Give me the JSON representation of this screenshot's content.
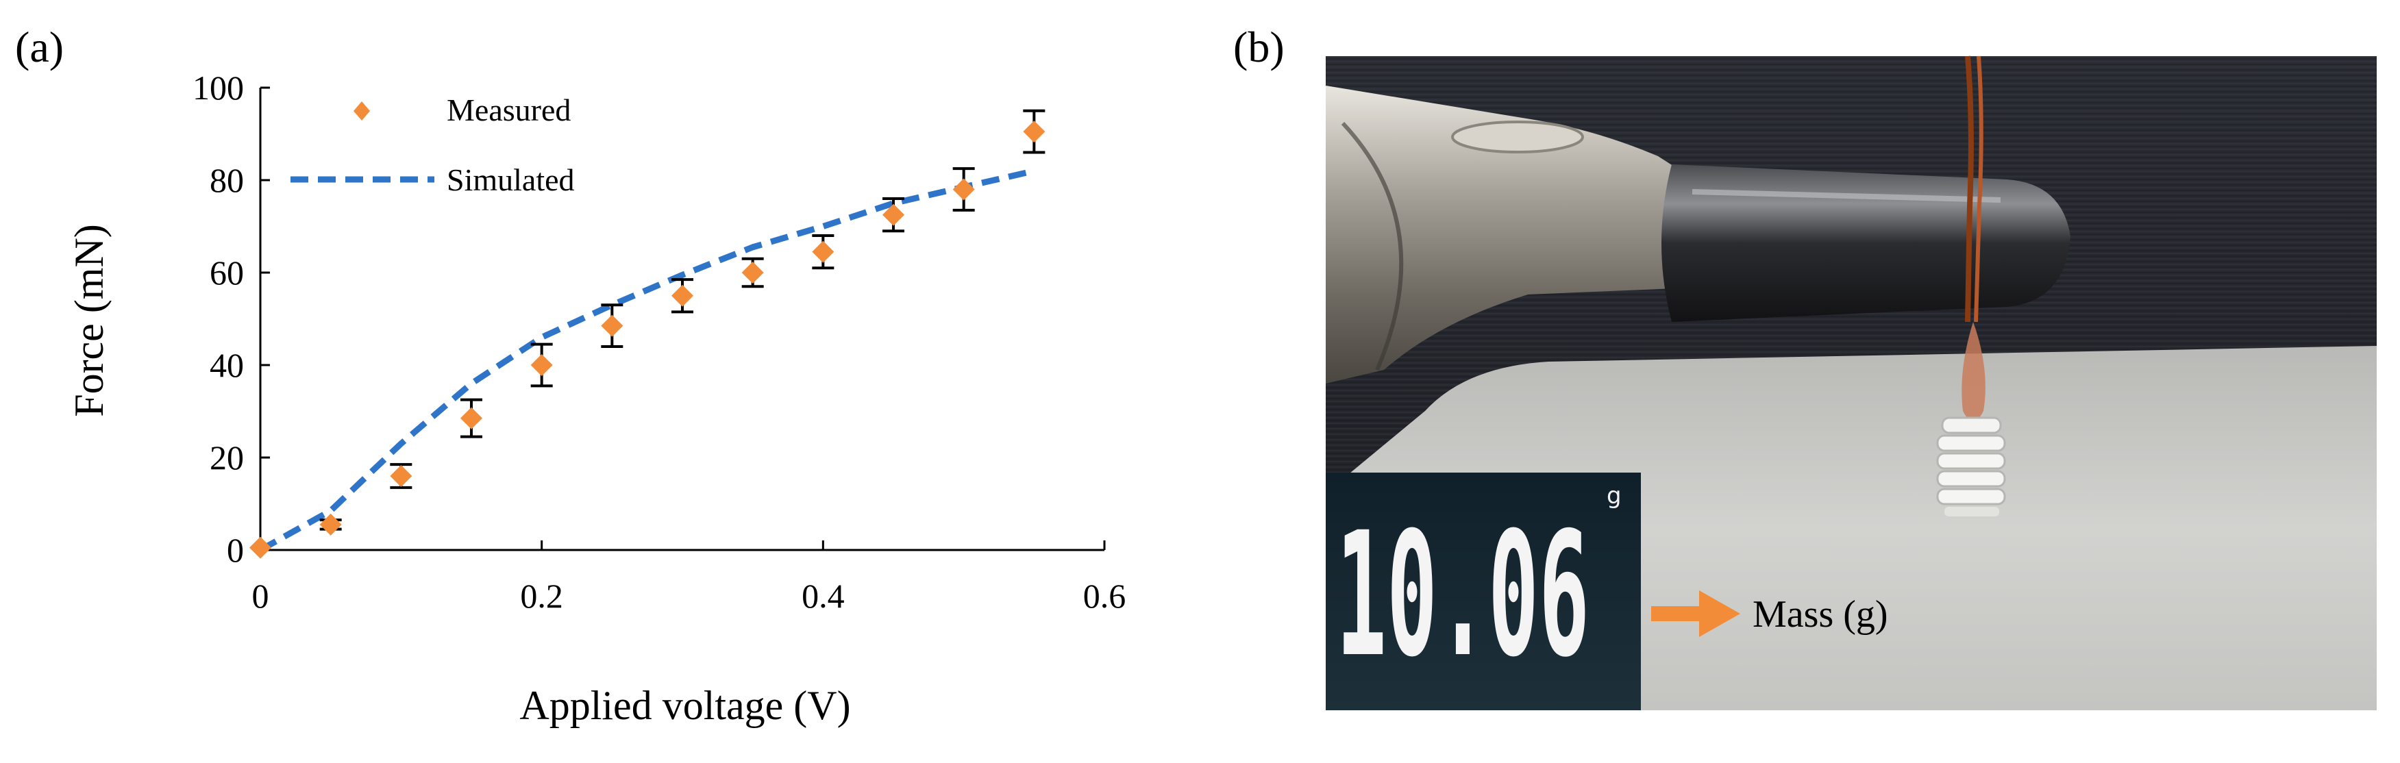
{
  "panels": {
    "a": {
      "label": "(a)"
    },
    "b": {
      "label": "(b)"
    }
  },
  "chart_data": {
    "type": "scatter",
    "xlabel": "Applied voltage (V)",
    "ylabel": "Force (mN)",
    "xlim": [
      0,
      0.6
    ],
    "ylim": [
      0,
      100
    ],
    "xticks": [
      0,
      0.2,
      0.4,
      0.6
    ],
    "xtick_labels": [
      "0",
      "0.2",
      "0.4",
      "0.6"
    ],
    "yticks": [
      0,
      20,
      40,
      60,
      80,
      100
    ],
    "ytick_labels": [
      "0",
      "20",
      "40",
      "60",
      "80",
      "100"
    ],
    "grid": false,
    "legend_position": "top-left",
    "series": [
      {
        "name": "Measured",
        "kind": "markers",
        "marker": "diamond",
        "color": "#F28C38",
        "x": [
          0,
          0.05,
          0.1,
          0.15,
          0.2,
          0.25,
          0.3,
          0.35,
          0.4,
          0.45,
          0.5,
          0.55
        ],
        "y": [
          0.5,
          5.5,
          16,
          28.5,
          40,
          48.5,
          55,
          60,
          64.5,
          72.5,
          78,
          90.5
        ],
        "error": [
          0,
          1,
          2.5,
          4,
          4.5,
          4.5,
          3.5,
          3,
          3.5,
          3.5,
          4.5,
          4.5
        ]
      },
      {
        "name": "Simulated",
        "kind": "dashed-line",
        "color": "#2E75C9",
        "x": [
          0,
          0.05,
          0.1,
          0.15,
          0.2,
          0.25,
          0.3,
          0.35,
          0.4,
          0.45,
          0.5,
          0.55
        ],
        "y": [
          0,
          8.5,
          23,
          36,
          46,
          53,
          59.5,
          65.5,
          70,
          75,
          78.5,
          82
        ]
      }
    ]
  },
  "photo": {
    "display_value": "10.06",
    "display_unit": "g",
    "annotation": "Mass (g)",
    "arrow_color": "#F28C38"
  }
}
